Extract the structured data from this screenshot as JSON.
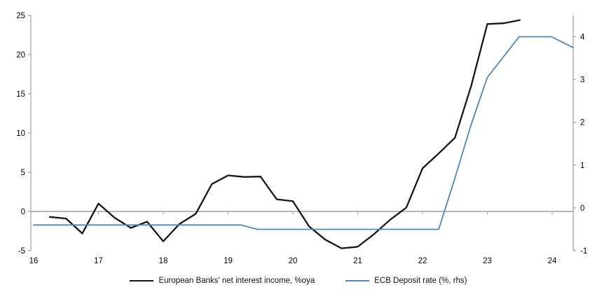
{
  "colors": {
    "series_nii": "#161616",
    "series_ecb": "#4d86bb",
    "axis_gray": "#a6a6a6",
    "zero_line_gray": "#a0a0a0",
    "label_text": "#000000"
  },
  "chart_data": {
    "type": "line",
    "title": "",
    "xlabel": "",
    "ylabel_left": "",
    "ylabel_right": "",
    "grid": false,
    "legend_position": "bottom",
    "zero_line": true,
    "x_axis": {
      "tick_labels": [
        "16",
        "17",
        "18",
        "19",
        "20",
        "21",
        "22",
        "23",
        "24"
      ],
      "tick_values": [
        16,
        17,
        18,
        19,
        20,
        21,
        22,
        23,
        24
      ],
      "range": [
        16,
        24.33
      ]
    },
    "left_axis": {
      "tick_labels": [
        "25",
        "20",
        "15",
        "10",
        "5",
        "0",
        "-5"
      ],
      "tick_values": [
        25,
        20,
        15,
        10,
        5,
        0,
        -5
      ],
      "range": [
        -5,
        25
      ]
    },
    "right_axis": {
      "tick_labels": [
        "4",
        "3",
        "2",
        "1",
        "0",
        "-1"
      ],
      "tick_values": [
        4,
        3,
        2,
        1,
        0,
        -1
      ],
      "range": [
        -1,
        4.5
      ]
    },
    "series": [
      {
        "name": "European Banks' net interest income, %oya",
        "axis": "left",
        "color": "#161616",
        "width": 2.3,
        "points": [
          [
            16.25,
            -0.7
          ],
          [
            16.5,
            -0.9
          ],
          [
            16.75,
            -2.8
          ],
          [
            17.0,
            1.0
          ],
          [
            17.25,
            -0.8
          ],
          [
            17.5,
            -2.1
          ],
          [
            17.75,
            -1.3
          ],
          [
            18.0,
            -3.8
          ],
          [
            18.25,
            -1.6
          ],
          [
            18.5,
            -0.3
          ],
          [
            18.75,
            3.5
          ],
          [
            19.0,
            4.6
          ],
          [
            19.25,
            4.4
          ],
          [
            19.5,
            4.45
          ],
          [
            19.75,
            1.55
          ],
          [
            20.0,
            1.3
          ],
          [
            20.25,
            -1.9
          ],
          [
            20.5,
            -3.6
          ],
          [
            20.75,
            -4.7
          ],
          [
            21.0,
            -4.5
          ],
          [
            21.25,
            -2.9
          ],
          [
            21.5,
            -1.05
          ],
          [
            21.75,
            0.5
          ],
          [
            22.0,
            5.5
          ],
          [
            22.25,
            7.4
          ],
          [
            22.5,
            9.4
          ],
          [
            22.75,
            16.0
          ],
          [
            23.0,
            23.9
          ],
          [
            23.25,
            24.0
          ],
          [
            23.5,
            24.4
          ]
        ]
      },
      {
        "name": "ECB Deposit rate (%, rhs)",
        "axis": "right",
        "color": "#4d86bb",
        "width": 1.8,
        "points": [
          [
            16.0,
            -0.4
          ],
          [
            19.2,
            -0.4
          ],
          [
            19.45,
            -0.5
          ],
          [
            22.25,
            -0.5
          ],
          [
            22.5,
            0.7
          ],
          [
            22.75,
            1.95
          ],
          [
            23.0,
            3.05
          ],
          [
            23.49,
            4.0
          ],
          [
            23.99,
            4.0
          ],
          [
            24.32,
            3.75
          ]
        ]
      }
    ]
  },
  "legend": {
    "item1": "European Banks' net interest income, %oya",
    "item2": "ECB Deposit rate (%, rhs)"
  }
}
